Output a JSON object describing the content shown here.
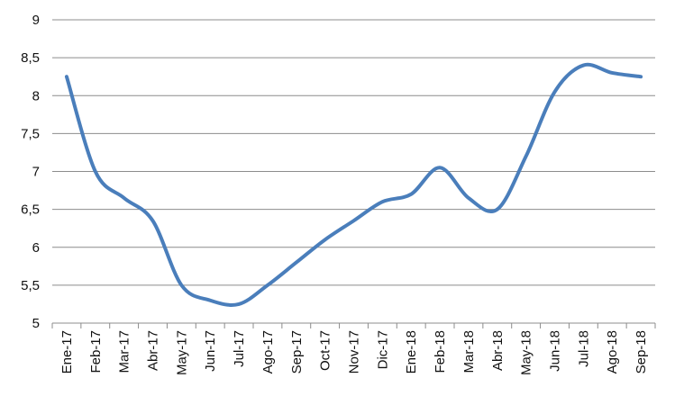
{
  "chart_data": {
    "type": "line",
    "title": "",
    "xlabel": "",
    "ylabel": "",
    "categories": [
      "Ene-17",
      "Feb-17",
      "Mar-17",
      "Abr-17",
      "May-17",
      "Jun-17",
      "Jul-17",
      "Ago-17",
      "Sep-17",
      "Oct-17",
      "Nov-17",
      "Dic-17",
      "Ene-18",
      "Feb-18",
      "Mar-18",
      "Abr-18",
      "May-18",
      "Jun-18",
      "Jul-18",
      "Ago-18",
      "Sep-18"
    ],
    "series": [
      {
        "values": [
          8.25,
          7.0,
          6.65,
          6.35,
          5.5,
          5.3,
          5.25,
          5.5,
          5.8,
          6.1,
          6.35,
          6.6,
          6.7,
          7.05,
          6.65,
          6.5,
          7.2,
          8.05,
          8.4,
          8.3,
          8.25
        ]
      }
    ],
    "ylim": [
      5,
      9
    ],
    "yticks": [
      "5",
      "5,5",
      "6",
      "6,5",
      "7",
      "7,5",
      "8",
      "8,5",
      "9"
    ],
    "yticks_values": [
      5,
      5.5,
      6,
      6.5,
      7,
      7.5,
      8,
      8.5,
      9
    ],
    "grid": true,
    "colors": {
      "series": "#4a7ebb",
      "grid": "#8c8c8c",
      "text": "#111111"
    }
  }
}
